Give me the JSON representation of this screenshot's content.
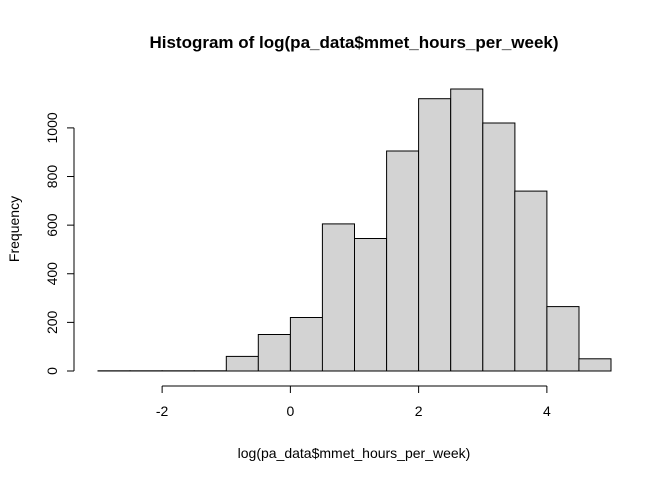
{
  "chart_data": {
    "type": "bar",
    "title": "Histogram of log(pa_data$mmet_hours_per_week)",
    "xlabel": "log(pa_data$mmet_hours_per_week)",
    "ylabel": "Frequency",
    "bin_width": 0.5,
    "bins": [
      {
        "x0": -3.0,
        "x1": -2.5,
        "count": 1
      },
      {
        "x0": -2.5,
        "x1": -2.0,
        "count": 1
      },
      {
        "x0": -2.0,
        "x1": -1.5,
        "count": 1
      },
      {
        "x0": -1.5,
        "x1": -1.0,
        "count": 1
      },
      {
        "x0": -1.0,
        "x1": -0.5,
        "count": 60
      },
      {
        "x0": -0.5,
        "x1": 0.0,
        "count": 150
      },
      {
        "x0": 0.0,
        "x1": 0.5,
        "count": 220
      },
      {
        "x0": 0.5,
        "x1": 1.0,
        "count": 605
      },
      {
        "x0": 1.0,
        "x1": 1.5,
        "count": 545
      },
      {
        "x0": 1.5,
        "x1": 2.0,
        "count": 905
      },
      {
        "x0": 2.0,
        "x1": 2.5,
        "count": 1120
      },
      {
        "x0": 2.5,
        "x1": 3.0,
        "count": 1160
      },
      {
        "x0": 3.0,
        "x1": 3.5,
        "count": 1020
      },
      {
        "x0": 3.5,
        "x1": 4.0,
        "count": 740
      },
      {
        "x0": 4.0,
        "x1": 4.5,
        "count": 265
      },
      {
        "x0": 4.5,
        "x1": 5.0,
        "count": 50
      }
    ],
    "xlim": [
      -3,
      5
    ],
    "ylim": [
      0,
      1160
    ],
    "x_ticks": [
      -2,
      0,
      2,
      4
    ],
    "x_tick_labels": [
      "-2",
      "0",
      "2",
      "4"
    ],
    "y_ticks": [
      0,
      200,
      400,
      600,
      800,
      1000
    ],
    "y_tick_labels": [
      "0",
      "200",
      "400",
      "600",
      "800",
      "1000"
    ],
    "bar_fill": "#d3d3d3",
    "bar_stroke": "#000000",
    "grid": false,
    "legend": "none"
  }
}
